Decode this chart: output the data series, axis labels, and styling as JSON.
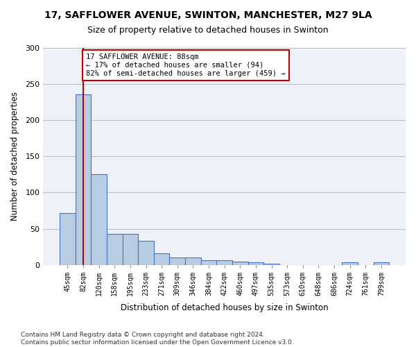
{
  "title1": "17, SAFFLOWER AVENUE, SWINTON, MANCHESTER, M27 9LA",
  "title2": "Size of property relative to detached houses in Swinton",
  "xlabel": "Distribution of detached houses by size in Swinton",
  "ylabel": "Number of detached properties",
  "bins": [
    "45sqm",
    "82sqm",
    "120sqm",
    "158sqm",
    "195sqm",
    "233sqm",
    "271sqm",
    "309sqm",
    "346sqm",
    "384sqm",
    "422sqm",
    "460sqm",
    "497sqm",
    "535sqm",
    "573sqm",
    "610sqm",
    "648sqm",
    "686sqm",
    "724sqm",
    "761sqm",
    "799sqm"
  ],
  "values": [
    72,
    236,
    125,
    43,
    43,
    33,
    16,
    10,
    10,
    6,
    6,
    4,
    3,
    2,
    0,
    0,
    0,
    0,
    3,
    0,
    3
  ],
  "bar_color": "#b8cce4",
  "bar_edge_color": "#4472c4",
  "vline_x": 1,
  "vline_color": "#c00000",
  "annotation_text": "17 SAFFLOWER AVENUE: 88sqm\n← 17% of detached houses are smaller (94)\n82% of semi-detached houses are larger (459) →",
  "annotation_box_color": "#ffffff",
  "annotation_box_edge": "#c00000",
  "ylim": [
    0,
    300
  ],
  "yticks": [
    0,
    50,
    100,
    150,
    200,
    250,
    300
  ],
  "footer": "Contains HM Land Registry data © Crown copyright and database right 2024.\nContains public sector information licensed under the Open Government Licence v3.0.",
  "bg_color": "#eef2f8"
}
